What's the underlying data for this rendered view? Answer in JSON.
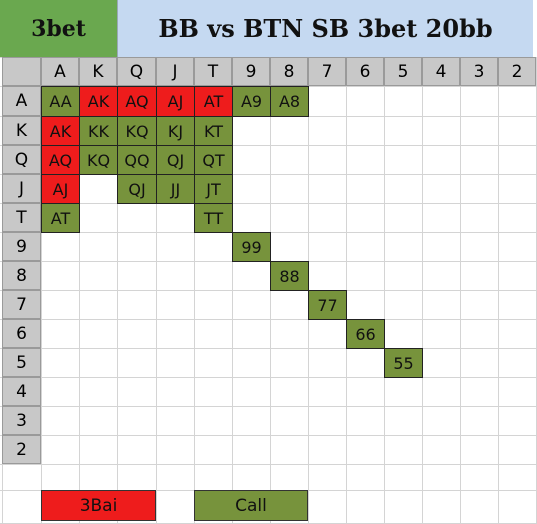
{
  "title": {
    "category": "3bet",
    "scenario": "BB vs BTN SB 3bet 20bb"
  },
  "ranks": [
    "A",
    "K",
    "Q",
    "J",
    "T",
    "9",
    "8",
    "7",
    "6",
    "5",
    "4",
    "3",
    "2"
  ],
  "hands": [
    {
      "label": "AA",
      "row": 0,
      "col": 0,
      "action": "call"
    },
    {
      "label": "AK",
      "row": 0,
      "col": 1,
      "action": "3bai"
    },
    {
      "label": "AQ",
      "row": 0,
      "col": 2,
      "action": "3bai"
    },
    {
      "label": "AJ",
      "row": 0,
      "col": 3,
      "action": "3bai"
    },
    {
      "label": "AT",
      "row": 0,
      "col": 4,
      "action": "3bai"
    },
    {
      "label": "A9",
      "row": 0,
      "col": 5,
      "action": "call"
    },
    {
      "label": "A8",
      "row": 0,
      "col": 6,
      "action": "call"
    },
    {
      "label": "AK",
      "row": 1,
      "col": 0,
      "action": "3bai"
    },
    {
      "label": "KK",
      "row": 1,
      "col": 1,
      "action": "call"
    },
    {
      "label": "KQ",
      "row": 1,
      "col": 2,
      "action": "call"
    },
    {
      "label": "KJ",
      "row": 1,
      "col": 3,
      "action": "call"
    },
    {
      "label": "KT",
      "row": 1,
      "col": 4,
      "action": "call"
    },
    {
      "label": "AQ",
      "row": 2,
      "col": 0,
      "action": "3bai"
    },
    {
      "label": "KQ",
      "row": 2,
      "col": 1,
      "action": "call"
    },
    {
      "label": "QQ",
      "row": 2,
      "col": 2,
      "action": "call"
    },
    {
      "label": "QJ",
      "row": 2,
      "col": 3,
      "action": "call"
    },
    {
      "label": "QT",
      "row": 2,
      "col": 4,
      "action": "call"
    },
    {
      "label": "AJ",
      "row": 3,
      "col": 0,
      "action": "3bai"
    },
    {
      "label": "QJ",
      "row": 3,
      "col": 2,
      "action": "call"
    },
    {
      "label": "JJ",
      "row": 3,
      "col": 3,
      "action": "call"
    },
    {
      "label": "JT",
      "row": 3,
      "col": 4,
      "action": "call"
    },
    {
      "label": "AT",
      "row": 4,
      "col": 0,
      "action": "call"
    },
    {
      "label": "TT",
      "row": 4,
      "col": 4,
      "action": "call"
    },
    {
      "label": "99",
      "row": 5,
      "col": 5,
      "action": "call"
    },
    {
      "label": "88",
      "row": 6,
      "col": 6,
      "action": "call"
    },
    {
      "label": "77",
      "row": 7,
      "col": 7,
      "action": "call"
    },
    {
      "label": "66",
      "row": 8,
      "col": 8,
      "action": "call"
    },
    {
      "label": "55",
      "row": 9,
      "col": 9,
      "action": "call"
    }
  ],
  "legend": [
    {
      "label": "3Bai",
      "action": "3bai"
    },
    {
      "label": "Call",
      "action": "call"
    }
  ],
  "colors": {
    "3bai": "#ee1c1c",
    "call": "#77933c",
    "header_gray": "#c8c8c8",
    "title_left_bg": "#6aa84f",
    "title_right_bg": "#c5d9f1"
  }
}
